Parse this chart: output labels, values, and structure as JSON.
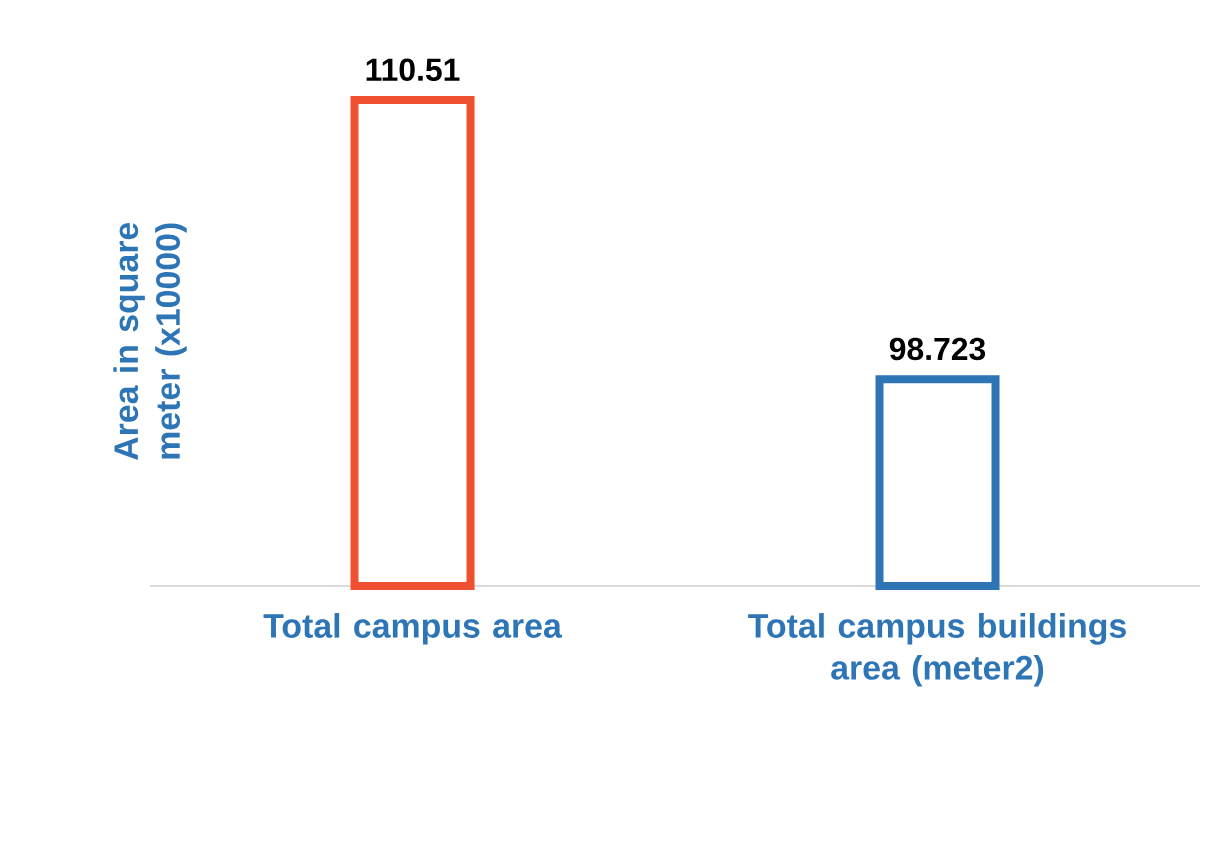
{
  "chart_data": {
    "type": "bar",
    "ylabel": "Area in square meter (x10000)",
    "categories": [
      "Total campus area",
      "Total campus buildings area (meter2)"
    ],
    "values": [
      110.51,
      98.723
    ],
    "colors": [
      "#ee5030",
      "#2e75b6"
    ],
    "ylim": [
      90,
      110.51
    ],
    "data_labels": true,
    "tick_labels": "x"
  }
}
